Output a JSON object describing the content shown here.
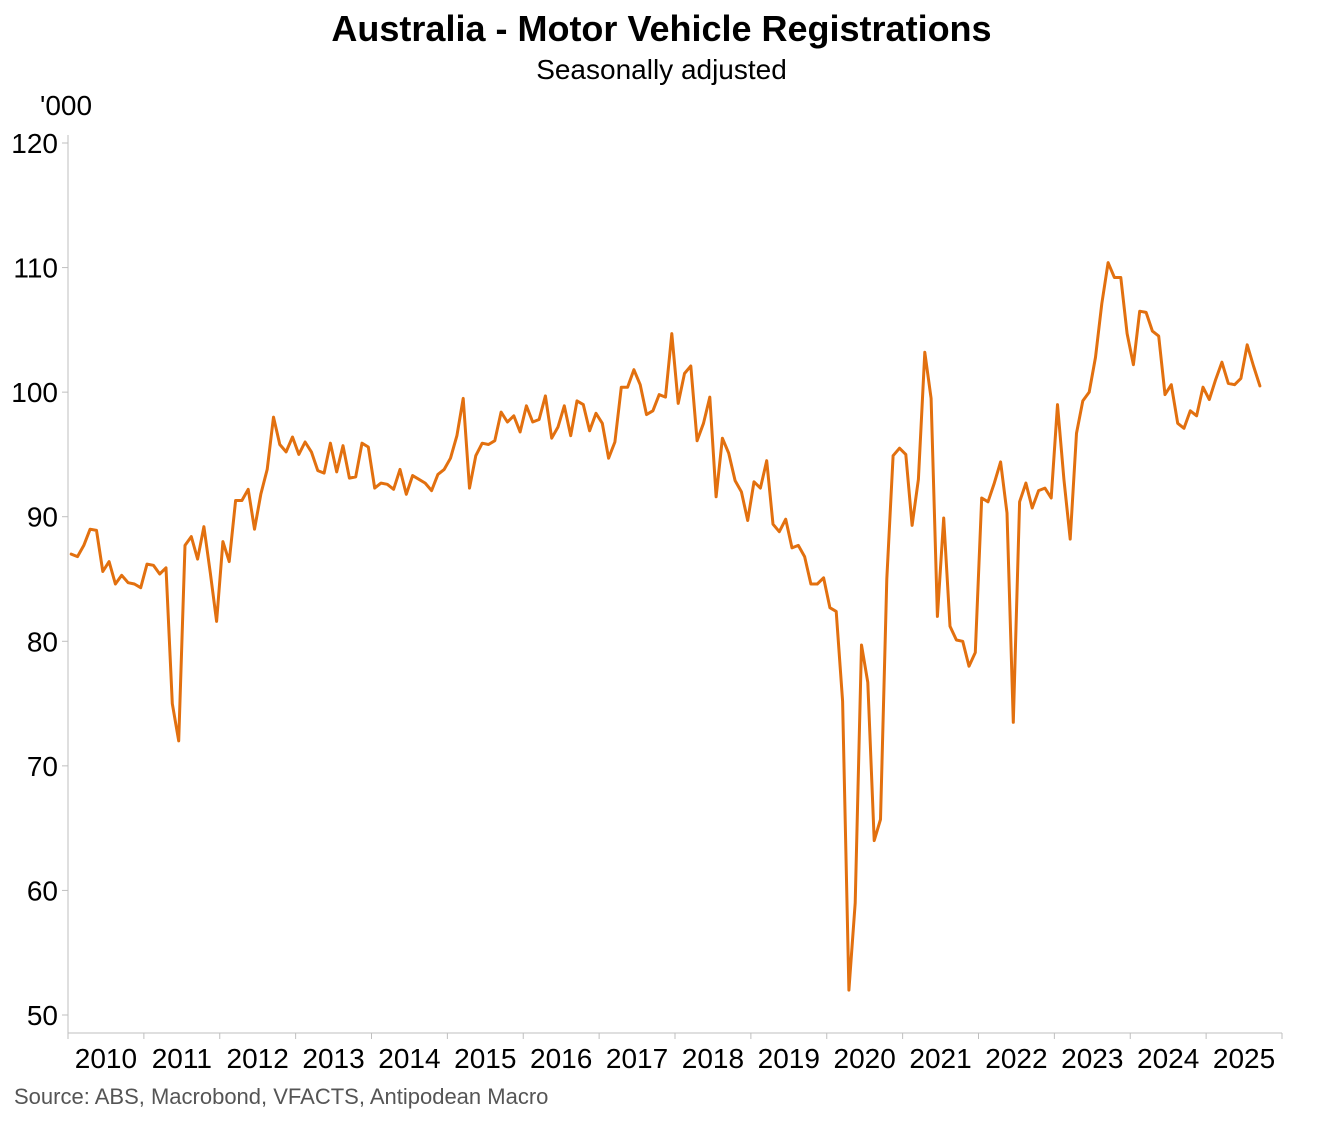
{
  "title": "Australia - Motor Vehicle Registrations",
  "subtitle": "Seasonally adjusted",
  "unit_label": "'000",
  "source": "Source: ABS, Macrobond, VFACTS, Antipodean Macro",
  "colors": {
    "line": "#E2700F",
    "axis": "#bfbfbf",
    "text": "#000000"
  },
  "chart_data": {
    "type": "line",
    "title": "Australia - Motor Vehicle Registrations",
    "subtitle": "Seasonally adjusted",
    "xlabel": "",
    "ylabel": "'000",
    "ylim": [
      50,
      120
    ],
    "yticks": [
      50,
      60,
      70,
      80,
      90,
      100,
      110,
      120
    ],
    "xlim": [
      2010.0,
      2026.0
    ],
    "xtick_labels": [
      "2010",
      "2011",
      "2012",
      "2013",
      "2014",
      "2015",
      "2016",
      "2017",
      "2018",
      "2019",
      "2020",
      "2021",
      "2022",
      "2023",
      "2024",
      "2025"
    ],
    "grid": false,
    "x_start": "2010-01",
    "frequency": "monthly",
    "series": [
      {
        "name": "Motor Vehicle Registrations",
        "values": [
          87.0,
          86.8,
          87.7,
          89.0,
          88.9,
          85.6,
          86.4,
          84.6,
          85.3,
          84.7,
          84.6,
          84.3,
          86.2,
          86.1,
          85.4,
          85.9,
          75.0,
          72.0,
          87.7,
          88.4,
          86.6,
          89.2,
          85.5,
          81.6,
          88.0,
          86.4,
          91.3,
          91.3,
          92.2,
          89.0,
          91.8,
          93.8,
          98.0,
          95.8,
          95.2,
          96.4,
          95.0,
          96.0,
          95.2,
          93.7,
          93.5,
          95.9,
          93.6,
          95.7,
          93.1,
          93.2,
          95.9,
          95.6,
          92.3,
          92.7,
          92.6,
          92.2,
          93.8,
          91.8,
          93.3,
          93.0,
          92.7,
          92.1,
          93.4,
          93.8,
          94.7,
          96.5,
          99.5,
          92.3,
          94.9,
          95.9,
          95.8,
          96.1,
          98.4,
          97.6,
          98.1,
          96.8,
          98.9,
          97.6,
          97.8,
          99.7,
          96.3,
          97.2,
          98.9,
          96.5,
          99.3,
          99.0,
          96.9,
          98.3,
          97.5,
          94.7,
          96.0,
          100.4,
          100.4,
          101.8,
          100.6,
          98.2,
          98.5,
          99.8,
          99.6,
          104.7,
          99.1,
          101.5,
          102.1,
          96.1,
          97.5,
          99.6,
          91.6,
          96.3,
          95.1,
          92.9,
          92.0,
          89.7,
          92.8,
          92.3,
          94.5,
          89.4,
          88.8,
          89.8,
          87.5,
          87.7,
          86.8,
          84.6,
          84.6,
          85.1,
          82.7,
          82.4,
          75.2,
          52.0,
          59.0,
          79.7,
          76.7,
          64.0,
          65.7,
          85.0,
          94.9,
          95.5,
          95.0,
          89.3,
          93.0,
          103.2,
          99.5,
          82.0,
          89.9,
          81.2,
          80.1,
          80.0,
          78.0,
          79.1,
          91.5,
          91.2,
          92.7,
          94.4,
          90.3,
          73.5,
          91.2,
          92.7,
          90.7,
          92.1,
          92.3,
          91.5,
          99.0,
          93.0,
          88.2,
          96.7,
          99.3,
          100.0,
          102.8,
          107.1,
          110.4,
          109.2,
          109.2,
          104.7,
          102.2,
          106.5,
          106.4,
          104.9,
          104.5,
          99.8,
          100.6,
          97.5,
          97.1,
          98.5,
          98.1,
          100.4,
          99.4,
          101.0,
          102.4,
          100.7,
          100.6,
          101.1,
          103.8,
          102.1,
          100.5
        ]
      }
    ]
  }
}
